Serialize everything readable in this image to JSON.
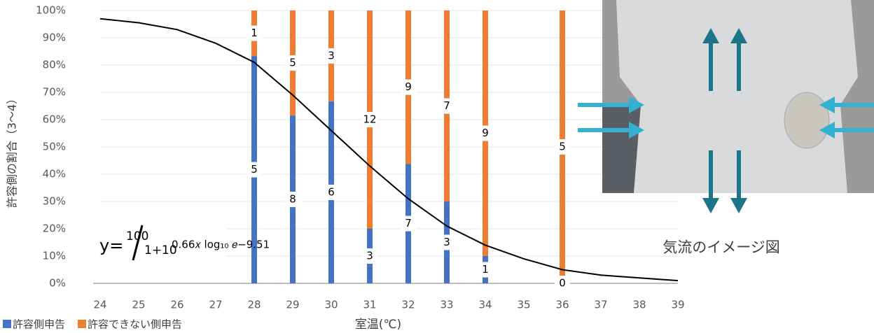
{
  "chart_data": {
    "type": "bar",
    "stacked": true,
    "x": [
      28,
      29,
      30,
      31,
      32,
      33,
      34,
      36
    ],
    "series": [
      {
        "name": "許容側申告",
        "color": "#4472c4",
        "values": [
          83.3,
          61.5,
          66.7,
          20,
          43.8,
          30,
          10,
          0
        ],
        "counts": [
          5,
          8,
          6,
          3,
          7,
          3,
          1,
          0
        ]
      },
      {
        "name": "許容できない側申告",
        "color": "#ed7d31",
        "values": [
          16.7,
          38.5,
          33.3,
          80,
          56.2,
          70,
          90,
          100
        ],
        "counts": [
          1,
          5,
          3,
          12,
          9,
          7,
          9,
          5
        ]
      }
    ],
    "curve": {
      "type": "line",
      "color": "#000000",
      "x": [
        24,
        25,
        26,
        27,
        28,
        29,
        30,
        31,
        32,
        33,
        34,
        35,
        36,
        37,
        38,
        39
      ],
      "values": [
        97,
        95.5,
        93,
        88,
        81,
        69,
        56,
        43,
        31,
        21,
        14,
        9,
        5,
        3,
        2,
        1
      ]
    },
    "formula": {
      "lhs": "y=",
      "numerator": "100",
      "denominator": "1+10",
      "exponent": "0.66𝑥 log₁₀ 𝑒−9.51"
    },
    "xlabel": "室温(℃)",
    "ylabel": "許容側の割合（3〜4）",
    "xlim": [
      24,
      39
    ],
    "xticks": [
      24,
      25,
      26,
      27,
      28,
      29,
      30,
      31,
      32,
      33,
      34,
      35,
      36,
      37,
      38,
      39
    ],
    "ylim": [
      0,
      100
    ],
    "yticks": [
      {
        "value": 0,
        "label": "0%"
      },
      {
        "value": 10,
        "label": "10%"
      },
      {
        "value": 20,
        "label": "20%"
      },
      {
        "value": 30,
        "label": "30%"
      },
      {
        "value": 40,
        "label": "40%"
      },
      {
        "value": 50,
        "label": "50%"
      },
      {
        "value": 60,
        "label": "60%"
      },
      {
        "value": 70,
        "label": "70%"
      },
      {
        "value": 80,
        "label": "80%"
      },
      {
        "value": 90,
        "label": "90%"
      },
      {
        "value": 100,
        "label": "100%"
      }
    ],
    "grid": true,
    "legend": "bottom-left"
  },
  "figure": {
    "caption": "気流のイメージ図"
  }
}
